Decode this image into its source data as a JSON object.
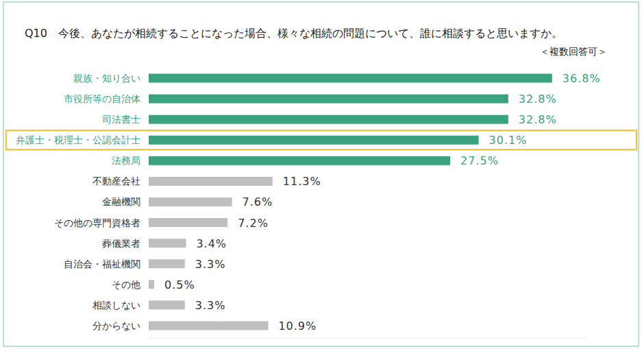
{
  "chart_data": {
    "type": "bar",
    "orientation": "horizontal",
    "title": "Q10　今後、あなたが相続することになった場合、様々な相続の問題について、誰に相談すると思いますか。",
    "subtitle": "＜複数回答可＞",
    "categories": [
      "親族・知り合い",
      "市役所等の自治体",
      "司法書士",
      "弁護士・税理士・公認会計士",
      "法務局",
      "不動産会社",
      "金融機関",
      "その他の専門資格者",
      "葬儀業者",
      "自治会・福祉機関",
      "その他",
      "相談しない",
      "分からない"
    ],
    "values": [
      36.8,
      32.8,
      32.8,
      30.1,
      27.5,
      11.3,
      7.6,
      7.2,
      3.4,
      3.3,
      0.5,
      3.3,
      10.9
    ],
    "value_labels": [
      "36.8%",
      "32.8%",
      "32.8%",
      "30.1%",
      "27.5%",
      "11.3%",
      "7.6%",
      "7.2%",
      "3.4%",
      "3.3%",
      "0.5%",
      "3.3%",
      "10.9%"
    ],
    "colors": [
      "#3aa27f",
      "#3aa27f",
      "#3aa27f",
      "#3aa27f",
      "#3aa27f",
      "#bfbfbf",
      "#bfbfbf",
      "#bfbfbf",
      "#bfbfbf",
      "#bfbfbf",
      "#bfbfbf",
      "#bfbfbf",
      "#bfbfbf"
    ],
    "xlim": [
      0,
      40
    ],
    "xticks": [],
    "tick_labels": false,
    "data_labels": true,
    "grid": false
  }
}
